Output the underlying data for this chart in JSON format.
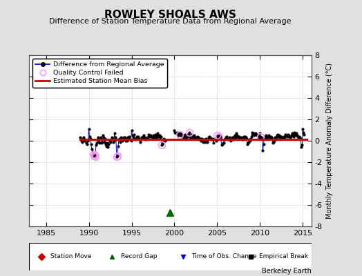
{
  "title": "ROWLEY SHOALS AWS",
  "subtitle": "Difference of Station Temperature Data from Regional Average",
  "ylabel": "Monthly Temperature Anomaly Difference (°C)",
  "credit": "Berkeley Earth",
  "xlim": [
    1983.0,
    2016.0
  ],
  "ylim": [
    -8,
    8
  ],
  "yticks": [
    -8,
    -6,
    -4,
    -2,
    0,
    2,
    4,
    6,
    8
  ],
  "xticks": [
    1985,
    1990,
    1995,
    2000,
    2005,
    2010,
    2015
  ],
  "bias_line_y": 0.12,
  "bias_line_x_start": 1989.0,
  "bias_line_x_end": 2015.5,
  "gap_marker_x": 1999.5,
  "gap_marker_y": -6.7,
  "bg_color": "#e0e0e0",
  "plot_bg_color": "#ffffff",
  "line_color": "#0000cc",
  "dot_color": "#000000",
  "bias_color": "#cc0000",
  "qc_color": "#ff99ff",
  "legend1_items": [
    {
      "label": "Difference from Regional Average"
    },
    {
      "label": "Quality Control Failed"
    },
    {
      "label": "Estimated Station Mean Bias"
    }
  ],
  "legend2_items": [
    {
      "label": "Station Move",
      "color": "#cc0000",
      "marker": "D"
    },
    {
      "label": "Record Gap",
      "color": "#006600",
      "marker": "^"
    },
    {
      "label": "Time of Obs. Change",
      "color": "#0000cc",
      "marker": "v"
    },
    {
      "label": "Empirical Break",
      "color": "#000000",
      "marker": "s"
    }
  ],
  "segment1_x": [
    1989.0,
    1989.08,
    1989.17,
    1989.25,
    1989.33,
    1989.42,
    1989.5,
    1989.58,
    1989.67,
    1989.75,
    1989.83,
    1989.92,
    1990.0,
    1990.08,
    1990.17,
    1990.25,
    1990.33,
    1990.42,
    1990.5,
    1990.58,
    1990.67,
    1990.75,
    1990.83,
    1990.92,
    1991.0,
    1991.08,
    1991.17,
    1991.25,
    1991.33,
    1991.42,
    1991.5,
    1991.58,
    1991.67,
    1991.75,
    1991.83,
    1991.92,
    1992.0,
    1992.08,
    1992.17,
    1992.25,
    1992.33,
    1992.42,
    1992.5,
    1992.58,
    1992.67,
    1992.75,
    1992.83,
    1992.92,
    1993.0,
    1993.08,
    1993.17,
    1993.25,
    1993.33,
    1993.42,
    1993.5,
    1993.58,
    1993.67,
    1993.75,
    1993.83,
    1993.92,
    1994.0,
    1994.08,
    1994.17,
    1994.25,
    1994.33,
    1994.42,
    1994.5,
    1994.58,
    1994.67,
    1994.75,
    1994.83,
    1994.92,
    1995.0,
    1995.08,
    1995.17,
    1995.25,
    1995.33,
    1995.42,
    1995.5,
    1995.58,
    1995.67,
    1995.75,
    1995.83,
    1995.92,
    1996.0,
    1996.08,
    1996.17,
    1996.25,
    1996.33,
    1996.42,
    1996.5,
    1996.58,
    1996.67,
    1996.75,
    1996.83,
    1996.92,
    1997.0,
    1997.08,
    1997.17,
    1997.25,
    1997.33,
    1997.42,
    1997.5,
    1997.58,
    1997.67,
    1997.75,
    1997.83,
    1997.92,
    1998.0,
    1998.08,
    1998.17,
    1998.25,
    1998.33,
    1998.42,
    1998.5,
    1998.58,
    1998.67,
    1998.75,
    1998.83,
    1998.92
  ],
  "segment1_y": [
    0.3,
    0.1,
    0.0,
    -0.1,
    0.2,
    0.3,
    0.0,
    0.1,
    -0.2,
    -0.3,
    0.0,
    0.1,
    1.1,
    0.4,
    0.2,
    -0.3,
    -0.8,
    -1.0,
    -1.3,
    -1.4,
    -1.3,
    -1.5,
    -0.4,
    -0.2,
    0.1,
    0.3,
    -0.1,
    -0.2,
    0.2,
    0.3,
    -0.2,
    -0.1,
    0.5,
    0.3,
    -0.1,
    0.2,
    -0.3,
    -0.5,
    -0.2,
    -0.6,
    -0.3,
    0.0,
    -0.1,
    0.1,
    0.3,
    0.2,
    -0.1,
    0.0,
    0.7,
    0.3,
    0.1,
    -1.5,
    -1.4,
    -0.5,
    0.1,
    0.2,
    -0.1,
    0.3,
    0.2,
    0.0,
    0.1,
    0.3,
    0.2,
    0.3,
    0.0,
    0.1,
    0.0,
    0.3,
    0.2,
    0.4,
    0.1,
    0.0,
    1.0,
    0.5,
    0.3,
    0.6,
    0.2,
    0.1,
    0.2,
    0.4,
    0.3,
    0.4,
    0.2,
    0.1,
    -0.1,
    0.1,
    0.3,
    0.3,
    0.4,
    0.5,
    0.3,
    0.2,
    0.1,
    0.2,
    0.3,
    0.2,
    0.6,
    0.5,
    0.4,
    0.5,
    0.4,
    0.3,
    0.4,
    0.5,
    0.3,
    0.6,
    0.4,
    0.3,
    0.7,
    0.5,
    0.4,
    0.5,
    0.3,
    0.4,
    -0.4,
    -0.3,
    -0.1,
    0.2,
    0.1,
    0.0
  ],
  "segment1_qc": [
    false,
    false,
    false,
    false,
    false,
    false,
    false,
    false,
    false,
    false,
    false,
    false,
    false,
    false,
    false,
    false,
    false,
    false,
    true,
    true,
    true,
    true,
    false,
    false,
    false,
    false,
    false,
    false,
    false,
    false,
    false,
    false,
    false,
    false,
    false,
    false,
    false,
    false,
    false,
    false,
    false,
    false,
    false,
    false,
    false,
    false,
    false,
    false,
    false,
    false,
    false,
    true,
    true,
    false,
    false,
    false,
    false,
    false,
    false,
    false,
    false,
    false,
    false,
    false,
    false,
    false,
    false,
    false,
    false,
    false,
    false,
    false,
    false,
    false,
    false,
    false,
    false,
    false,
    false,
    false,
    false,
    false,
    false,
    false,
    false,
    false,
    false,
    false,
    false,
    false,
    false,
    false,
    false,
    false,
    false,
    false,
    false,
    false,
    false,
    false,
    false,
    false,
    false,
    false,
    false,
    false,
    false,
    false,
    false,
    false,
    false,
    false,
    false,
    false,
    true,
    false,
    false,
    false,
    false,
    false
  ],
  "segment2_x": [
    2000.0,
    2000.08,
    2000.17,
    2000.25,
    2000.33,
    2000.42,
    2000.5,
    2000.58,
    2000.67,
    2000.75,
    2000.83,
    2000.92,
    2001.0,
    2001.08,
    2001.17,
    2001.25,
    2001.33,
    2001.42,
    2001.5,
    2001.58,
    2001.67,
    2001.75,
    2001.83,
    2001.92,
    2002.0,
    2002.08,
    2002.17,
    2002.25,
    2002.33,
    2002.42,
    2002.5,
    2002.58,
    2002.67,
    2002.75,
    2002.83,
    2002.92,
    2003.0,
    2003.08,
    2003.17,
    2003.25,
    2003.33,
    2003.42,
    2003.5,
    2003.58,
    2003.67,
    2003.75,
    2003.83,
    2003.92,
    2004.0,
    2004.08,
    2004.17,
    2004.25,
    2004.33,
    2004.42,
    2004.5,
    2004.58,
    2004.67,
    2004.75,
    2004.83,
    2004.92,
    2005.0,
    2005.08,
    2005.17,
    2005.25,
    2005.33,
    2005.42,
    2005.5,
    2005.58,
    2005.67,
    2005.75,
    2005.83,
    2005.92,
    2006.0,
    2006.08,
    2006.17,
    2006.25,
    2006.33,
    2006.42,
    2006.5,
    2006.58,
    2006.67,
    2006.75,
    2006.83,
    2006.92,
    2007.0,
    2007.08,
    2007.17,
    2007.25,
    2007.33,
    2007.42,
    2007.5,
    2007.58,
    2007.67,
    2007.75,
    2007.83,
    2007.92,
    2008.0,
    2008.08,
    2008.17,
    2008.25,
    2008.33,
    2008.42,
    2008.5,
    2008.58,
    2008.67,
    2008.75,
    2008.83,
    2008.92,
    2009.0,
    2009.08,
    2009.17,
    2009.25,
    2009.33,
    2009.42,
    2009.5,
    2009.58,
    2009.67,
    2009.75,
    2009.83,
    2009.92,
    2010.0,
    2010.08,
    2010.17,
    2010.25,
    2010.33,
    2010.42,
    2010.5,
    2010.58,
    2010.67,
    2010.75,
    2010.83,
    2010.92,
    2011.0,
    2011.08,
    2011.17,
    2011.25,
    2011.33,
    2011.42,
    2011.5,
    2011.58,
    2011.67,
    2011.75,
    2011.83,
    2011.92,
    2012.0,
    2012.08,
    2012.17,
    2012.25,
    2012.33,
    2012.42,
    2012.5,
    2012.58,
    2012.67,
    2012.75,
    2012.83,
    2012.92,
    2013.0,
    2013.08,
    2013.17,
    2013.25,
    2013.33,
    2013.42,
    2013.5,
    2013.58,
    2013.67,
    2013.75,
    2013.83,
    2013.92,
    2014.0,
    2014.08,
    2014.17,
    2014.25,
    2014.33,
    2014.42,
    2014.5,
    2014.58,
    2014.67,
    2014.75,
    2014.83,
    2014.92,
    2015.0,
    2015.08,
    2015.17
  ],
  "segment2_y": [
    1.0,
    0.8,
    0.7,
    0.8,
    0.6,
    0.5,
    0.7,
    0.6,
    0.5,
    0.7,
    0.6,
    0.4,
    0.5,
    0.3,
    0.4,
    0.6,
    0.3,
    0.3,
    0.4,
    0.6,
    0.5,
    0.8,
    0.3,
    0.2,
    0.6,
    0.5,
    0.3,
    0.4,
    0.5,
    0.3,
    0.2,
    0.3,
    0.4,
    0.3,
    0.1,
    0.2,
    0.2,
    0.0,
    0.2,
    0.1,
    -0.1,
    0.1,
    0.0,
    -0.1,
    0.2,
    0.0,
    -0.1,
    0.1,
    0.3,
    0.4,
    0.3,
    0.2,
    0.1,
    0.2,
    0.1,
    -0.2,
    0.2,
    0.2,
    0.1,
    0.0,
    0.5,
    0.4,
    0.2,
    0.4,
    0.5,
    0.3,
    -0.4,
    -0.3,
    -0.2,
    -0.2,
    0.1,
    0.2,
    0.3,
    0.4,
    0.2,
    0.1,
    0.2,
    0.3,
    0.1,
    0.0,
    0.1,
    0.3,
    0.2,
    0.1,
    0.4,
    0.5,
    0.3,
    0.7,
    0.5,
    0.4,
    0.3,
    0.4,
    0.2,
    0.2,
    0.3,
    0.1,
    0.3,
    0.4,
    0.3,
    0.4,
    0.3,
    0.2,
    -0.3,
    -0.2,
    -0.1,
    0.1,
    0.0,
    0.2,
    0.4,
    0.8,
    0.6,
    0.7,
    0.5,
    0.6,
    0.7,
    0.6,
    0.5,
    0.5,
    0.3,
    0.4,
    0.7,
    0.4,
    0.3,
    0.2,
    -0.9,
    -0.3,
    0.3,
    0.4,
    0.5,
    0.3,
    0.2,
    0.4,
    0.5,
    0.4,
    0.3,
    0.4,
    0.3,
    0.2,
    -0.2,
    -0.1,
    0.0,
    0.3,
    0.3,
    0.2,
    0.5,
    0.6,
    0.4,
    0.5,
    0.3,
    0.4,
    0.4,
    0.3,
    0.2,
    0.2,
    0.4,
    0.3,
    0.6,
    0.5,
    0.4,
    0.6,
    0.5,
    0.4,
    0.3,
    0.4,
    0.5,
    0.7,
    0.5,
    0.4,
    0.8,
    0.6,
    0.5,
    0.7,
    0.5,
    0.4,
    0.3,
    0.4,
    0.3,
    0.2,
    -0.6,
    -0.4,
    1.1,
    0.8,
    0.6
  ],
  "segment2_qc": [
    false,
    false,
    false,
    false,
    false,
    false,
    false,
    true,
    false,
    false,
    false,
    false,
    false,
    false,
    false,
    false,
    false,
    false,
    false,
    false,
    false,
    true,
    false,
    false,
    false,
    false,
    false,
    false,
    false,
    false,
    false,
    false,
    false,
    false,
    false,
    false,
    false,
    false,
    false,
    false,
    false,
    false,
    false,
    false,
    false,
    false,
    false,
    false,
    false,
    false,
    false,
    false,
    false,
    false,
    false,
    false,
    false,
    false,
    false,
    false,
    true,
    false,
    false,
    true,
    false,
    false,
    false,
    false,
    false,
    false,
    false,
    false,
    false,
    false,
    false,
    false,
    false,
    false,
    false,
    false,
    false,
    false,
    false,
    false,
    false,
    false,
    false,
    false,
    false,
    false,
    false,
    false,
    false,
    false,
    false,
    false,
    false,
    false,
    false,
    false,
    false,
    false,
    false,
    false,
    false,
    false,
    false,
    false,
    false,
    false,
    false,
    false,
    false,
    false,
    false,
    false,
    false,
    false,
    false,
    false,
    false,
    true,
    false,
    false,
    false,
    false,
    false,
    false,
    false,
    false,
    false,
    false,
    false,
    false,
    false,
    false,
    false,
    false,
    false,
    false,
    false,
    false,
    false,
    false,
    false,
    false,
    false,
    false,
    false,
    false,
    false,
    false,
    false,
    false,
    false,
    false,
    false,
    false,
    false,
    false,
    false,
    false,
    false,
    false,
    false,
    false,
    false,
    false,
    false,
    false,
    false,
    false,
    false,
    false,
    false,
    false,
    false,
    false,
    false,
    false,
    false,
    false,
    false
  ]
}
